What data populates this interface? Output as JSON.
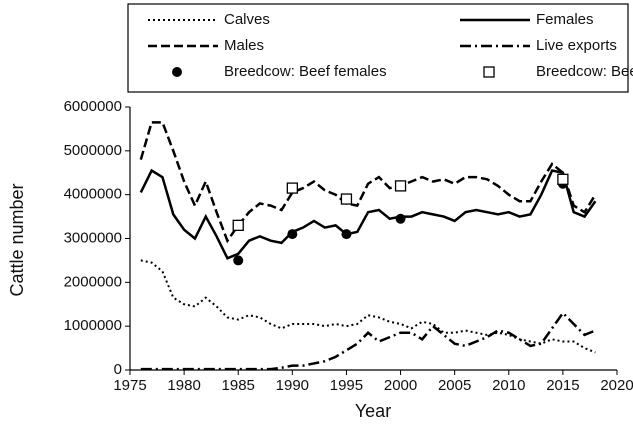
{
  "chart_data": {
    "type": "line",
    "xlabel": "Year",
    "ylabel": "Cattle number",
    "x": [
      1976,
      1977,
      1978,
      1979,
      1980,
      1981,
      1982,
      1983,
      1984,
      1985,
      1986,
      1987,
      1988,
      1989,
      1990,
      1991,
      1992,
      1993,
      1994,
      1995,
      1996,
      1997,
      1998,
      1999,
      2000,
      2001,
      2002,
      2003,
      2004,
      2005,
      2006,
      2007,
      2008,
      2009,
      2010,
      2011,
      2012,
      2013,
      2014,
      2015,
      2016,
      2017,
      2018
    ],
    "xlim": [
      1975,
      2020
    ],
    "xticks": [
      1975,
      1980,
      1985,
      1990,
      1995,
      2000,
      2005,
      2010,
      2015,
      2020
    ],
    "ylim": [
      0,
      6000000
    ],
    "yticks": [
      0,
      1000000,
      2000000,
      3000000,
      4000000,
      5000000,
      6000000
    ],
    "series": [
      {
        "name": "Calves",
        "color": "#000000",
        "style": "dotted",
        "values": [
          2500000,
          2450000,
          2250000,
          1650000,
          1500000,
          1450000,
          1650000,
          1450000,
          1200000,
          1150000,
          1250000,
          1200000,
          1050000,
          950000,
          1050000,
          1050000,
          1050000,
          1000000,
          1050000,
          1000000,
          1050000,
          1250000,
          1200000,
          1100000,
          1050000,
          950000,
          1100000,
          1050000,
          850000,
          850000,
          900000,
          850000,
          800000,
          850000,
          800000,
          700000,
          650000,
          600000,
          700000,
          650000,
          650000,
          500000,
          400000
        ]
      },
      {
        "name": "Females",
        "color": "#000000",
        "style": "solid",
        "values": [
          4050000,
          4550000,
          4400000,
          3550000,
          3200000,
          3000000,
          3500000,
          3050000,
          2550000,
          2650000,
          2950000,
          3050000,
          2950000,
          2900000,
          3150000,
          3250000,
          3400000,
          3250000,
          3300000,
          3100000,
          3150000,
          3600000,
          3650000,
          3450000,
          3500000,
          3500000,
          3600000,
          3550000,
          3500000,
          3400000,
          3600000,
          3650000,
          3600000,
          3550000,
          3600000,
          3500000,
          3550000,
          4000000,
          4550000,
          4500000,
          3600000,
          3500000,
          3850000
        ]
      },
      {
        "name": "Males",
        "color": "#000000",
        "style": "dashed",
        "values": [
          4800000,
          5650000,
          5650000,
          5000000,
          4300000,
          3750000,
          4300000,
          3600000,
          2950000,
          3300000,
          3600000,
          3800000,
          3750000,
          3650000,
          4050000,
          4150000,
          4300000,
          4100000,
          4000000,
          3800000,
          3750000,
          4250000,
          4400000,
          4150000,
          4200000,
          4300000,
          4400000,
          4300000,
          4350000,
          4250000,
          4400000,
          4400000,
          4350000,
          4200000,
          4000000,
          3850000,
          3850000,
          4300000,
          4700000,
          4500000,
          3750000,
          3600000,
          4000000
        ]
      },
      {
        "name": "Live exports",
        "color": "#000000",
        "style": "dashdot",
        "values": [
          20000,
          20000,
          20000,
          20000,
          20000,
          20000,
          20000,
          20000,
          20000,
          20000,
          20000,
          20000,
          20000,
          50000,
          100000,
          100000,
          150000,
          200000,
          300000,
          450000,
          600000,
          850000,
          650000,
          750000,
          850000,
          850000,
          700000,
          1000000,
          800000,
          600000,
          550000,
          650000,
          750000,
          900000,
          850000,
          700000,
          550000,
          600000,
          950000,
          1300000,
          1050000,
          800000,
          900000
        ]
      },
      {
        "name": "Breedcow: Beef females",
        "color": "#000000",
        "style": "circle",
        "x": [
          1985,
          1990,
          1995,
          2000,
          2015
        ],
        "values": [
          2500000,
          3100000,
          3100000,
          3450000,
          4250000
        ]
      },
      {
        "name": "Breedcow: Beef males",
        "color": "#000000",
        "style": "square",
        "x": [
          1985,
          1990,
          1995,
          2000,
          2015
        ],
        "values": [
          3300000,
          4150000,
          3900000,
          4200000,
          4350000
        ]
      }
    ]
  }
}
